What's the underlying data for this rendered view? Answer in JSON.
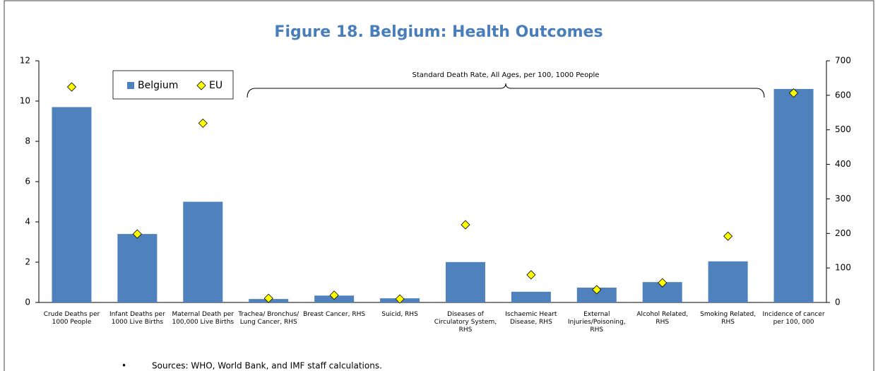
{
  "chart_data": {
    "type": "bar",
    "title": "Figure 18. Belgium: Health Outcomes",
    "annotation": "Standard Death Rate, All Ages, per 100, 1000 People",
    "footnote": "Sources: WHO, World Bank, and IMF staff calculations.",
    "categories": [
      "Crude Deaths per 1000 People",
      "Infant Deaths per 1000 Live Births",
      "Maternal Death per 100,000 Live Births",
      "Trachea/ Bronchus/ Lung Cancer, RHS",
      "Breast Cancer, RHS",
      "Suicid, RHS",
      "Diseases of Circulatory System, RHS",
      "Ischaemic Heart Disease, RHS",
      "External Injuries/Poisoning, RHS",
      "Alcohol Related, RHS",
      "Smoking Related, RHS",
      "Incidence of cancer per 100, 000"
    ],
    "value_axes": [
      "y",
      "y",
      "y",
      "y2",
      "y2",
      "y2",
      "y2",
      "y2",
      "y2",
      "y2",
      "y2",
      "y"
    ],
    "series": [
      {
        "name": "Belgium",
        "color": "#4f81bd",
        "values": [
          9.7,
          3.4,
          5.0,
          10,
          20,
          12,
          117,
          31,
          43,
          59,
          119,
          10.6
        ]
      },
      {
        "name": "EU",
        "color": "#ffff00",
        "values": [
          10.7,
          3.4,
          8.9,
          12,
          21,
          10,
          225,
          80,
          37,
          57,
          192,
          10.4
        ]
      }
    ],
    "ylim": [
      0,
      12
    ],
    "yticks": [
      0,
      2,
      4,
      6,
      8,
      10,
      12
    ],
    "y2lim": [
      0,
      700
    ],
    "y2ticks": [
      0,
      100,
      200,
      300,
      400,
      500,
      600,
      700
    ],
    "legend": "upper left"
  }
}
